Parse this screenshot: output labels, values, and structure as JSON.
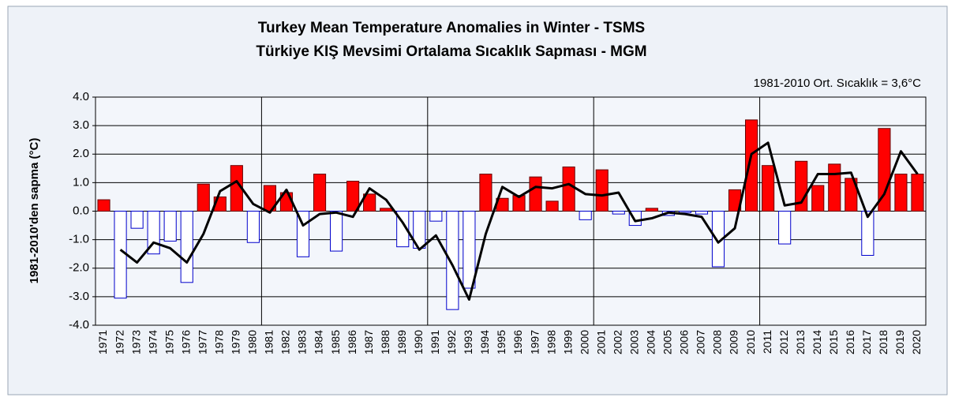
{
  "chart_data": {
    "type": "bar",
    "title": "Turkey Mean Temperature Anomalies  in Winter - TSMS",
    "subtitle": "Türkiye  KIŞ Mevsimi Ortalama Sıcaklık Sapması  - MGM",
    "annotation": "1981-2010 Ort. Sıcaklık = 3,6°C",
    "y_label": "1981-2010'den sapma (°C)",
    "categories": [
      "1971",
      "1972",
      "1973",
      "1974",
      "1975",
      "1976",
      "1977",
      "1978",
      "1979",
      "1980",
      "1981",
      "1982",
      "1983",
      "1984",
      "1985",
      "1986",
      "1987",
      "1988",
      "1989",
      "1990",
      "1991",
      "1992",
      "1993",
      "1994",
      "1995",
      "1996",
      "1997",
      "1998",
      "1999",
      "2000",
      "2001",
      "2002",
      "2003",
      "2004",
      "2005",
      "2006",
      "2007",
      "2008",
      "2009",
      "2010",
      "2011",
      "2012",
      "2013",
      "2014",
      "2015",
      "2016",
      "2017",
      "2018",
      "2019",
      "2020"
    ],
    "series": [
      {
        "color_positive": "#ff0000",
        "color_negative": "#ffffff",
        "edge_negative": "#0000cc",
        "values": [
          0.4,
          -3.05,
          -0.6,
          -1.5,
          -1.05,
          -2.5,
          0.95,
          0.5,
          1.6,
          -1.1,
          0.9,
          0.65,
          -1.6,
          1.3,
          -1.4,
          1.05,
          0.6,
          0.1,
          -1.25,
          -1.3,
          -0.35,
          -3.45,
          -2.7,
          1.3,
          0.45,
          0.55,
          1.2,
          0.35,
          1.55,
          -0.3,
          1.45,
          -0.1,
          -0.5,
          0.1,
          -0.15,
          -0.05,
          -0.1,
          -1.95,
          0.75,
          3.2,
          1.6,
          -1.15,
          1.75,
          0.9,
          1.65,
          1.15,
          -1.55,
          2.9,
          1.3,
          1.3
        ]
      },
      {
        "type": "line",
        "color": "#000000",
        "values": [
          null,
          -1.35,
          -1.8,
          -1.1,
          -1.3,
          -1.8,
          -0.8,
          0.7,
          1.05,
          0.25,
          -0.05,
          0.75,
          -0.5,
          -0.1,
          -0.05,
          -0.2,
          0.8,
          0.4,
          -0.4,
          -1.35,
          -0.85,
          -1.9,
          -3.1,
          -0.8,
          0.85,
          0.5,
          0.85,
          0.8,
          0.95,
          0.6,
          0.55,
          0.65,
          -0.35,
          -0.25,
          -0.05,
          -0.1,
          -0.2,
          -1.1,
          -0.6,
          2.0,
          2.4,
          0.2,
          0.3,
          1.3,
          1.3,
          1.35,
          -0.2,
          0.6,
          2.1,
          1.3
        ]
      }
    ],
    "ylim": [
      -4,
      4
    ],
    "yticks": [
      {
        "value": -4,
        "label": "-4.0"
      },
      {
        "value": -3,
        "label": "-3.0"
      },
      {
        "value": -2,
        "label": "-2.0"
      },
      {
        "value": -1,
        "label": "-1.0"
      },
      {
        "value": 0,
        "label": "0.0"
      },
      {
        "value": 1,
        "label": "1.0"
      },
      {
        "value": 2,
        "label": "2.0"
      },
      {
        "value": 3,
        "label": "3.0"
      },
      {
        "value": 4,
        "label": "4.0"
      }
    ],
    "grid": true
  }
}
